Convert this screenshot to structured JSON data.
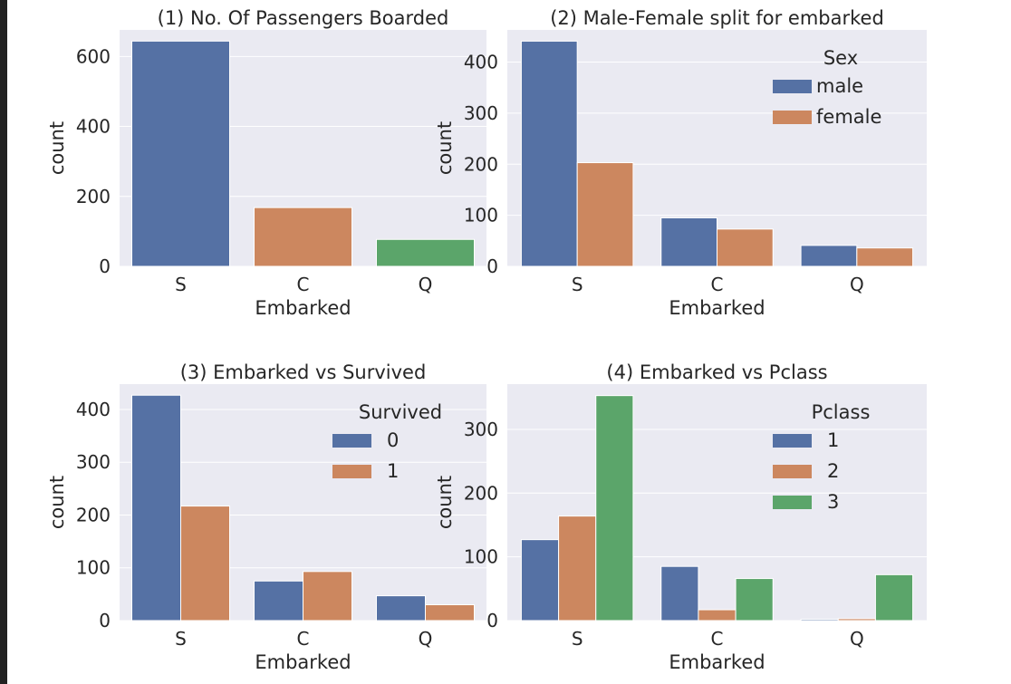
{
  "colors": {
    "background": "#eaeaf2",
    "grid": "#ffffff",
    "blue": "#5571a4",
    "orange": "#cc875f",
    "green": "#5ba56a",
    "text": "#262626"
  },
  "chart_data": [
    {
      "type": "bar",
      "title": "(1) No. Of Passengers Boarded",
      "xlabel": "Embarked",
      "ylabel": "count",
      "categories": [
        "S",
        "C",
        "Q"
      ],
      "series": [
        {
          "values": [
            644,
            168,
            77
          ],
          "colors": [
            "#5571a4",
            "#cc875f",
            "#5ba56a"
          ]
        }
      ],
      "ylim": [
        0,
        676
      ],
      "yticks": [
        0,
        200,
        400,
        600
      ],
      "legend": null,
      "grid": true
    },
    {
      "type": "bar",
      "title": "(2) Male-Female split for embarked",
      "xlabel": "Embarked",
      "ylabel": "count",
      "categories": [
        "S",
        "C",
        "Q"
      ],
      "series": [
        {
          "name": "male",
          "values": [
            441,
            95,
            41
          ],
          "color": "#5571a4"
        },
        {
          "name": "female",
          "values": [
            203,
            73,
            36
          ],
          "color": "#cc875f"
        }
      ],
      "ylim": [
        0,
        463
      ],
      "yticks": [
        0,
        100,
        200,
        300,
        400
      ],
      "legend": {
        "title": "Sex",
        "placement": "upper right"
      },
      "grid": true
    },
    {
      "type": "bar",
      "title": "(3) Embarked vs Survived",
      "xlabel": "Embarked",
      "ylabel": "count",
      "categories": [
        "S",
        "C",
        "Q"
      ],
      "series": [
        {
          "name": "0",
          "values": [
            427,
            75,
            47
          ],
          "color": "#5571a4"
        },
        {
          "name": "1",
          "values": [
            217,
            93,
            30
          ],
          "color": "#cc875f"
        }
      ],
      "ylim": [
        0,
        448
      ],
      "yticks": [
        0,
        100,
        200,
        300,
        400
      ],
      "legend": {
        "title": "Survived",
        "placement": "upper right"
      },
      "grid": true
    },
    {
      "type": "bar",
      "title": "(4) Embarked vs Pclass",
      "xlabel": "Embarked",
      "ylabel": "count",
      "categories": [
        "S",
        "C",
        "Q"
      ],
      "series": [
        {
          "name": "1",
          "values": [
            127,
            85,
            2
          ],
          "color": "#5571a4"
        },
        {
          "name": "2",
          "values": [
            164,
            17,
            3
          ],
          "color": "#cc875f"
        },
        {
          "name": "3",
          "values": [
            353,
            66,
            72
          ],
          "color": "#5ba56a"
        }
      ],
      "ylim": [
        0,
        371
      ],
      "yticks": [
        0,
        100,
        200,
        300
      ],
      "legend": {
        "title": "Pclass",
        "placement": "upper right"
      },
      "grid": true
    }
  ]
}
